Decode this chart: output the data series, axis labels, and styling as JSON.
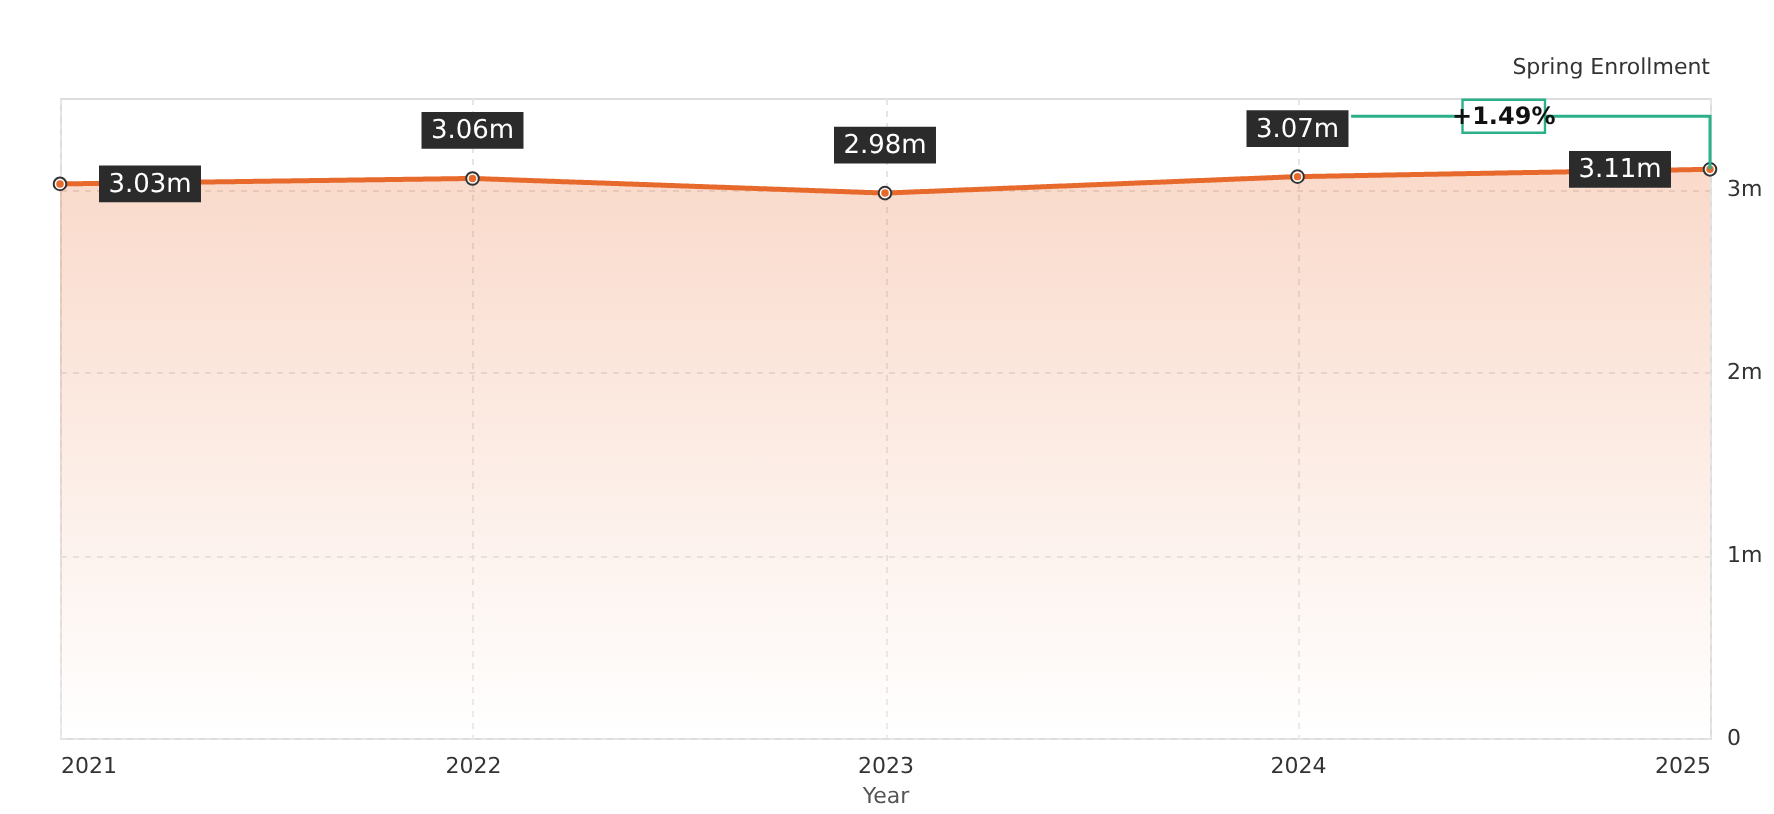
{
  "chart_data": {
    "type": "area",
    "xlabel": "Year",
    "ylabel": "Spring Enrollment",
    "x": [
      2021,
      2022,
      2023,
      2024,
      2025
    ],
    "series": [
      {
        "color": "#e8692c",
        "values": [
          3.03,
          3.06,
          2.98,
          3.07,
          3.11
        ],
        "value_labels": [
          "3.03m",
          "3.06m",
          "2.98m",
          "3.07m",
          "3.11m"
        ]
      }
    ],
    "xlim": [
      2021,
      2025
    ],
    "xticks": [
      2021,
      2022,
      2023,
      2024,
      2025
    ],
    "ylim": [
      0,
      3.5
    ],
    "yticks": [
      {
        "value": 0,
        "label": "0"
      },
      {
        "value": 1,
        "label": "1m"
      },
      {
        "value": 2,
        "label": "2m"
      },
      {
        "value": 3,
        "label": "3m"
      }
    ],
    "annotations": [
      {
        "text": "+1.49%",
        "x": 2024.5,
        "y": 3.4
      }
    ],
    "grid": true,
    "marker": "circle"
  }
}
